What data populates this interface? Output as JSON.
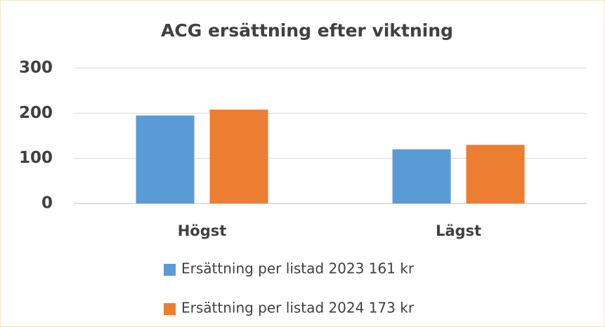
{
  "chart_data": {
    "type": "bar",
    "title": "ACG ersättning efter viktning",
    "categories": [
      "Högst",
      "Lägst"
    ],
    "series": [
      {
        "name": "Ersättning per listad 2023 161 kr",
        "color": "#5b9bd5",
        "values": [
          195,
          120
        ]
      },
      {
        "name": "Ersättning per listad 2024 173 kr",
        "color": "#ed7d31",
        "values": [
          208,
          130
        ]
      }
    ],
    "ylim": [
      0,
      300
    ],
    "yticks": [
      0,
      100,
      200,
      300
    ],
    "grid": true,
    "legend": "bottom"
  }
}
